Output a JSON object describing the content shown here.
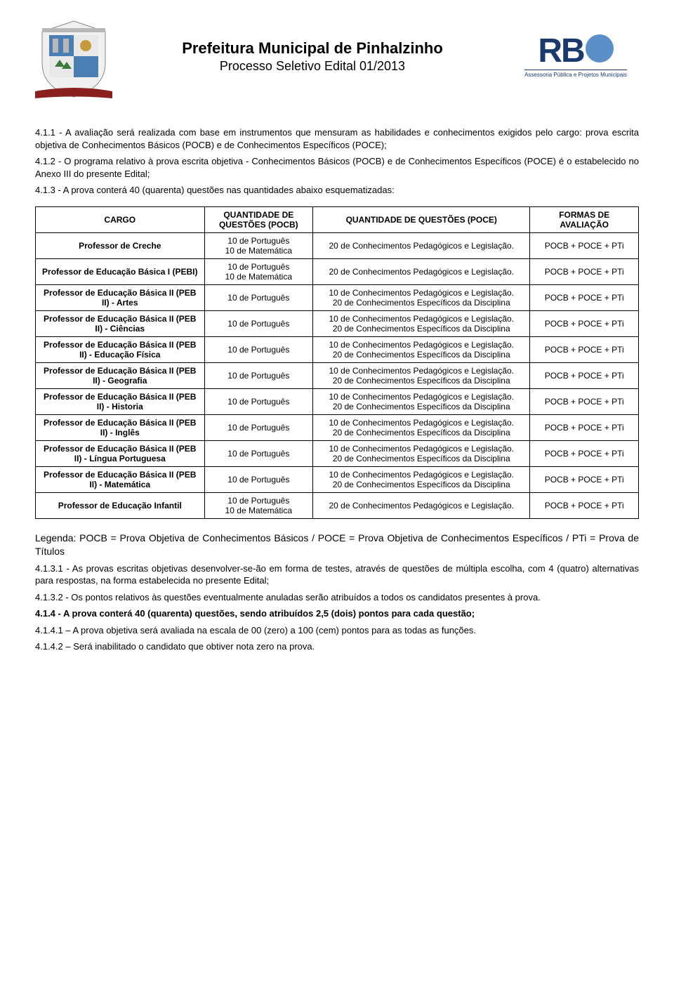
{
  "header": {
    "title1": "Prefeitura Municipal de Pinhalzinho",
    "title2": "Processo Seletivo Edital 01/2013",
    "rbo_letters": "RB",
    "rbo_sub": "Assessoria Pública e Projetos Municipais"
  },
  "paragraphs": {
    "p411": "4.1.1 - A avaliação será realizada com base em instrumentos que mensuram as habilidades e conhecimentos exigidos pelo cargo: prova escrita objetiva de Conhecimentos Básicos (POCB) e de Conhecimentos Específicos (POCE);",
    "p412": "4.1.2 - O programa relativo à prova escrita objetiva - Conhecimentos Básicos (POCB) e de Conhecimentos Específicos (POCE) é o estabelecido no Anexo III do presente Edital;",
    "p413": "4.1.3 - A prova conterá 40 (quarenta) questões nas quantidades abaixo esquematizadas:"
  },
  "table": {
    "headers": {
      "cargo": "CARGO",
      "pocb": "QUANTIDADE DE QUESTÕES (POCB)",
      "poce": "QUANTIDADE DE QUESTÕES (POCE)",
      "formas": "FORMAS DE AVALIAÇÃO"
    },
    "col_widths": [
      "28%",
      "18%",
      "36%",
      "18%"
    ],
    "rows": [
      {
        "cargo": "Professor de Creche",
        "pocb": "10 de Português\n10 de Matemática",
        "poce": "20 de Conhecimentos Pedagógicos e Legislação.",
        "formas": "POCB + POCE + PTi"
      },
      {
        "cargo": "Professor de Educação Básica I (PEBI)",
        "pocb": "10 de Português\n10 de Matemática",
        "poce": "20 de Conhecimentos Pedagógicos e Legislação.",
        "formas": "POCB + POCE + PTi"
      },
      {
        "cargo": "Professor de Educação Básica II (PEB II) - Artes",
        "pocb": "10 de Português",
        "poce": "10 de Conhecimentos Pedagógicos e Legislação.\n20 de Conhecimentos Específicos da Disciplina",
        "formas": "POCB + POCE + PTi"
      },
      {
        "cargo": "Professor de Educação Básica II (PEB II) - Ciências",
        "pocb": "10 de Português",
        "poce": "10 de Conhecimentos Pedagógicos e Legislação.\n20 de Conhecimentos Específicos da Disciplina",
        "formas": "POCB + POCE + PTi"
      },
      {
        "cargo": "Professor de Educação Básica II (PEB II) - Educação Física",
        "pocb": "10 de Português",
        "poce": "10 de Conhecimentos Pedagógicos e Legislação.\n20 de Conhecimentos Específicos da Disciplina",
        "formas": "POCB + POCE + PTi"
      },
      {
        "cargo": "Professor de Educação Básica II (PEB II) - Geografia",
        "pocb": "10 de Português",
        "poce": "10 de Conhecimentos Pedagógicos e Legislação.\n20 de Conhecimentos Específicos da Disciplina",
        "formas": "POCB + POCE + PTi"
      },
      {
        "cargo": "Professor de Educação Básica II (PEB II) - Historia",
        "pocb": "10 de Português",
        "poce": "10 de Conhecimentos Pedagógicos e Legislação.\n20 de Conhecimentos Específicos da Disciplina",
        "formas": "POCB + POCE + PTi"
      },
      {
        "cargo": "Professor de Educação Básica II (PEB II) - Inglês",
        "pocb": "10 de Português",
        "poce": "10 de Conhecimentos Pedagógicos e Legislação.\n20 de Conhecimentos Específicos da Disciplina",
        "formas": "POCB + POCE + PTi"
      },
      {
        "cargo": "Professor de Educação Básica II (PEB II) - Língua Portuguesa",
        "pocb": "10 de Português",
        "poce": "10 de Conhecimentos Pedagógicos e Legislação.\n20 de Conhecimentos Específicos da Disciplina",
        "formas": "POCB + POCE + PTi"
      },
      {
        "cargo": "Professor de Educação Básica II (PEB II) - Matemática",
        "pocb": "10 de Português",
        "poce": "10 de Conhecimentos Pedagógicos e Legislação.\n20 de Conhecimentos Específicos da Disciplina",
        "formas": "POCB + POCE + PTi"
      },
      {
        "cargo": "Professor de Educação Infantil",
        "pocb": "10 de Português\n10 de Matemática",
        "poce": "20 de Conhecimentos Pedagógicos e Legislação.",
        "formas": "POCB + POCE + PTi"
      }
    ]
  },
  "legenda": "Legenda: POCB = Prova Objetiva de Conhecimentos Básicos / POCE = Prova Objetiva de Conhecimentos Específicos / PTi = Prova de Títulos",
  "footer_paragraphs": {
    "p4131": "4.1.3.1 - As provas escritas objetivas desenvolver-se-ão em forma de testes, através de questões de múltipla escolha, com 4 (quatro) alternativas para respostas, na forma estabelecida no presente Edital;",
    "p4132": "4.1.3.2 - Os pontos relativos às questões eventualmente anuladas serão atribuídos a todos os candidatos presentes à prova.",
    "p414": "4.1.4 - A prova conterá 40 (quarenta) questões, sendo atribuídos 2,5 (dois) pontos para cada questão;",
    "p4141": "4.1.4.1 – A prova objetiva será avaliada na escala de 00 (zero) a 100 (cem) pontos para as todas as funções.",
    "p4142": "4.1.4.2 – Será inabilitado o candidato que obtiver nota zero na prova."
  },
  "colors": {
    "text": "#000000",
    "background": "#ffffff",
    "border": "#000000",
    "rbo_dark": "#1a3a6e",
    "rbo_light": "#5a8fc7",
    "shield_blue": "#4a7fb5",
    "shield_gray": "#b8b8b8",
    "shield_green": "#3a7a3a",
    "shield_red": "#8b2020"
  }
}
